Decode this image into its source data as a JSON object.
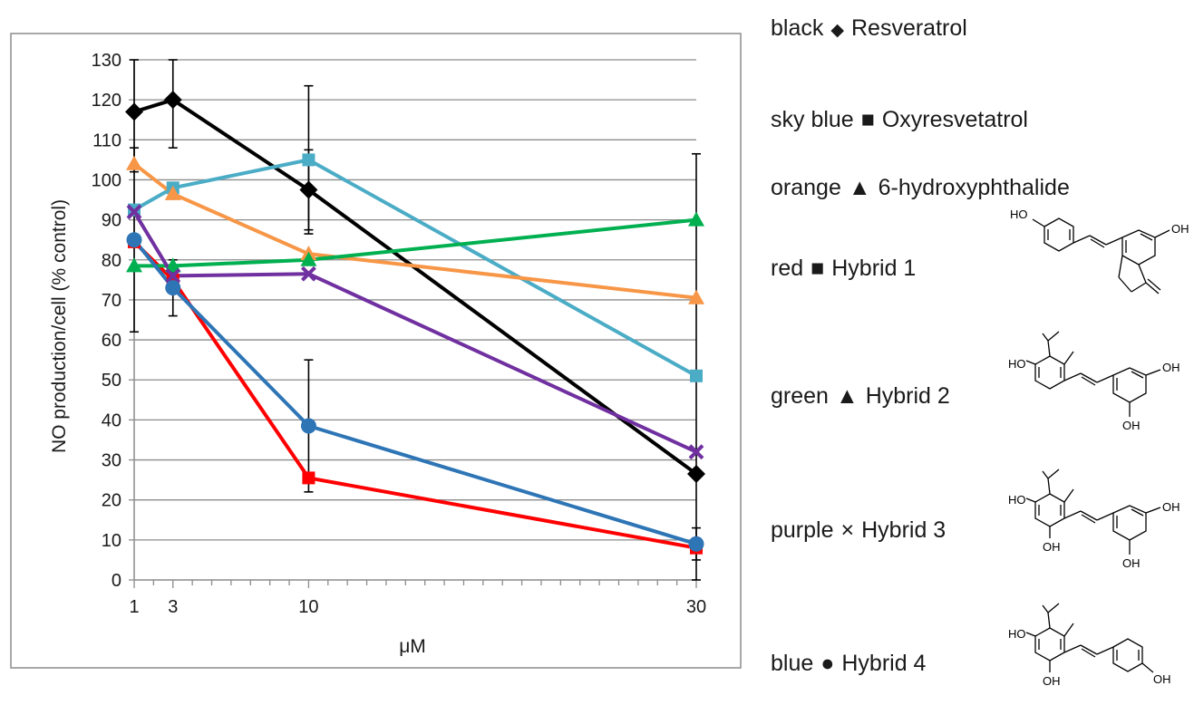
{
  "chart_data": {
    "type": "line",
    "ylabel": "NO production/cell (% control)",
    "xlabel": "μM",
    "x": [
      1,
      3,
      10,
      30
    ],
    "x_ticks": [
      "1",
      "3",
      "10",
      "30"
    ],
    "xlim": [
      1,
      30
    ],
    "ylim": [
      0,
      130
    ],
    "y_ticks": [
      "0",
      "10",
      "20",
      "30",
      "40",
      "50",
      "60",
      "70",
      "80",
      "90",
      "100",
      "110",
      "120",
      "130"
    ],
    "grid": true,
    "legend_position": "right",
    "series": [
      {
        "name": "Resveratrol",
        "color_name": "black",
        "symbol": "◆",
        "color": "#000000",
        "marker": "diamond",
        "values": [
          117,
          120,
          97.5,
          26.5
        ],
        "err": [
          15,
          12,
          10,
          80
        ]
      },
      {
        "name": "Oxyresvetatrol",
        "color_name": "sky blue",
        "symbol": "■",
        "color": "#4bacc6",
        "marker": "square",
        "values": [
          92.5,
          98,
          105,
          51
        ],
        "err": [
          0,
          0,
          18.5,
          0
        ]
      },
      {
        "name": "6-hydroxyphthalide",
        "color_name": "orange",
        "symbol": "▲",
        "color": "#f79646",
        "marker": "triangle",
        "values": [
          104,
          96.5,
          81.5,
          70.5
        ],
        "err": [
          0,
          0,
          0,
          0
        ]
      },
      {
        "name": "Hybrid 1",
        "color_name": "red",
        "symbol": "■",
        "color": "#ff0000",
        "marker": "square",
        "values": [
          84.5,
          75,
          25.5,
          8
        ],
        "err": [
          0,
          0,
          0,
          0
        ]
      },
      {
        "name": "Hybrid 2",
        "color_name": "green",
        "symbol": "▲",
        "color": "#00b050",
        "marker": "triangle",
        "values": [
          78.5,
          78.5,
          80,
          90
        ],
        "err": [
          0,
          0,
          0,
          0
        ]
      },
      {
        "name": "Hybrid 3",
        "color_name": "purple",
        "symbol": "×",
        "color": "#7030a0",
        "marker": "x",
        "values": [
          92,
          76,
          76.5,
          32
        ],
        "err": [
          0,
          0,
          0,
          0
        ]
      },
      {
        "name": "Hybrid 4",
        "color_name": "blue",
        "symbol": "●",
        "color": "#2e75b6",
        "marker": "circle",
        "values": [
          85,
          73,
          38.5,
          9
        ],
        "err": [
          23,
          7,
          16.5,
          4
        ]
      }
    ]
  },
  "legend": [
    {
      "color_name": "black",
      "symbol": "◆",
      "label": "Resveratrol"
    },
    {
      "color_name": "sky blue",
      "symbol": "■",
      "label": "Oxyresvetatrol"
    },
    {
      "color_name": "orange",
      "symbol": "▲",
      "label": "6-hydroxyphthalide"
    },
    {
      "color_name": "red",
      "symbol": "■",
      "label": "Hybrid 1"
    },
    {
      "color_name": "green",
      "symbol": "▲",
      "label": "Hybrid 2"
    },
    {
      "color_name": "purple",
      "symbol": "×",
      "label": "Hybrid 3"
    },
    {
      "color_name": "blue",
      "symbol": "●",
      "label": "Hybrid 4"
    }
  ],
  "structure_labels": {
    "oh": "OH",
    "ho": "HO"
  }
}
